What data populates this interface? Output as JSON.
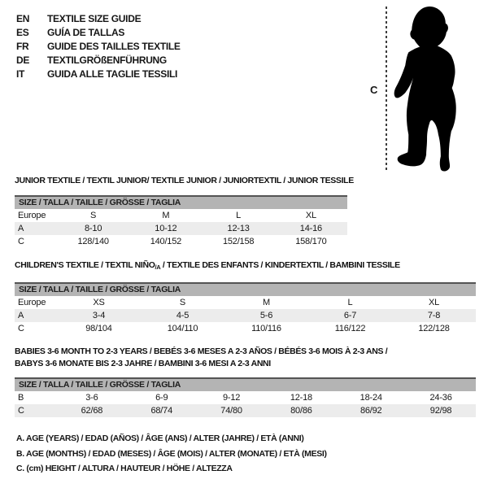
{
  "colors": {
    "header_bar": "#b4b4b4",
    "header_border": "#545454",
    "row_shaded": "#ececec",
    "text": "#161616",
    "silhouette": "#000000"
  },
  "languages": [
    {
      "code": "EN",
      "label": "TEXTILE SIZE GUIDE"
    },
    {
      "code": "ES",
      "label": "GUÍA DE TALLAS"
    },
    {
      "code": "FR",
      "label": "GUIDE DES TAILLES TEXTILE"
    },
    {
      "code": "DE",
      "label": "TEXTILGRÖßENFÜHRUNG"
    },
    {
      "code": "IT",
      "label": "GUIDA ALLE TAGLIE TESSILI"
    }
  ],
  "figure": {
    "measure_label": "C",
    "icon": "baby-silhouette"
  },
  "tables": [
    {
      "id": "junior",
      "title_lines": [
        [
          {
            "text": "JUNIOR TEXTILE / TEXTIL JUNIOR/ TEXTILE JUNIOR / JUNIORTEXTIL / JUNIOR TESSILE"
          }
        ]
      ],
      "header": "SIZE / TALLA / TAILLE / GRÖSSE / TAGLIA",
      "rows": [
        {
          "label": "Europe",
          "cells": [
            "S",
            "M",
            "L",
            "XL"
          ],
          "shaded": false
        },
        {
          "label": "A",
          "cells": [
            "8-10",
            "10-12",
            "12-13",
            "14-16"
          ],
          "shaded": true
        },
        {
          "label": "C",
          "cells": [
            "128/140",
            "140/152",
            "152/158",
            "158/170"
          ],
          "shaded": false
        }
      ]
    },
    {
      "id": "children",
      "title_lines": [
        [
          {
            "text": "CHILDREN'S TEXTILE / TEXTIL NIÑO"
          },
          {
            "text": "/A",
            "sub": true
          },
          {
            "text": " / TEXTILE DES ENFANTS / KINDERTEXTIL / BAMBINI TESSILE"
          }
        ]
      ],
      "header": "SIZE / TALLA / TAILLE / GRÖSSE / TAGLIA",
      "rows": [
        {
          "label": "Europe",
          "cells": [
            "XS",
            "S",
            "M",
            "L",
            "XL"
          ],
          "shaded": false
        },
        {
          "label": "A",
          "cells": [
            "3-4",
            "4-5",
            "5-6",
            "6-7",
            "7-8"
          ],
          "shaded": true
        },
        {
          "label": "C",
          "cells": [
            "98/104",
            "104/110",
            "110/116",
            "116/122",
            "122/128"
          ],
          "shaded": false
        }
      ]
    },
    {
      "id": "babies",
      "title_lines": [
        [
          {
            "text": "BABIES 3-6 MONTH TO 2-3 YEARS / BEBÉS 3-6 MESES A 2-3 AÑOS / BÉBÉS 3-6 MOIS À 2-3 ANS /"
          }
        ],
        [
          {
            "text": "BABYS 3-6 MONATE BIS 2-3 JAHRE / BAMBINI 3-6 MESI A 2-3 ANNI"
          }
        ]
      ],
      "header": "SIZE / TALLA / TAILLE / GRÖSSE / TAGLIA",
      "rows": [
        {
          "label": "B",
          "cells": [
            "3-6",
            "6-9",
            "9-12",
            "12-18",
            "18-24",
            "24-36"
          ],
          "shaded": false
        },
        {
          "label": "C",
          "cells": [
            "62/68",
            "68/74",
            "74/80",
            "80/86",
            "86/92",
            "92/98"
          ],
          "shaded": true
        }
      ]
    }
  ],
  "legend": [
    "A. AGE (YEARS) / EDAD (AÑOS) / ÂGE (ANS) / ALTER (JAHRE) / ETÀ (ANNI)",
    "B. AGE (MONTHS) / EDAD (MESES) / ÂGE (MOIS) / ALTER (MONATE) / ETÀ (MESI)",
    "C. (cm) HEIGHT / ALTURA / HAUTEUR / HÖHE / ALTEZZA"
  ]
}
